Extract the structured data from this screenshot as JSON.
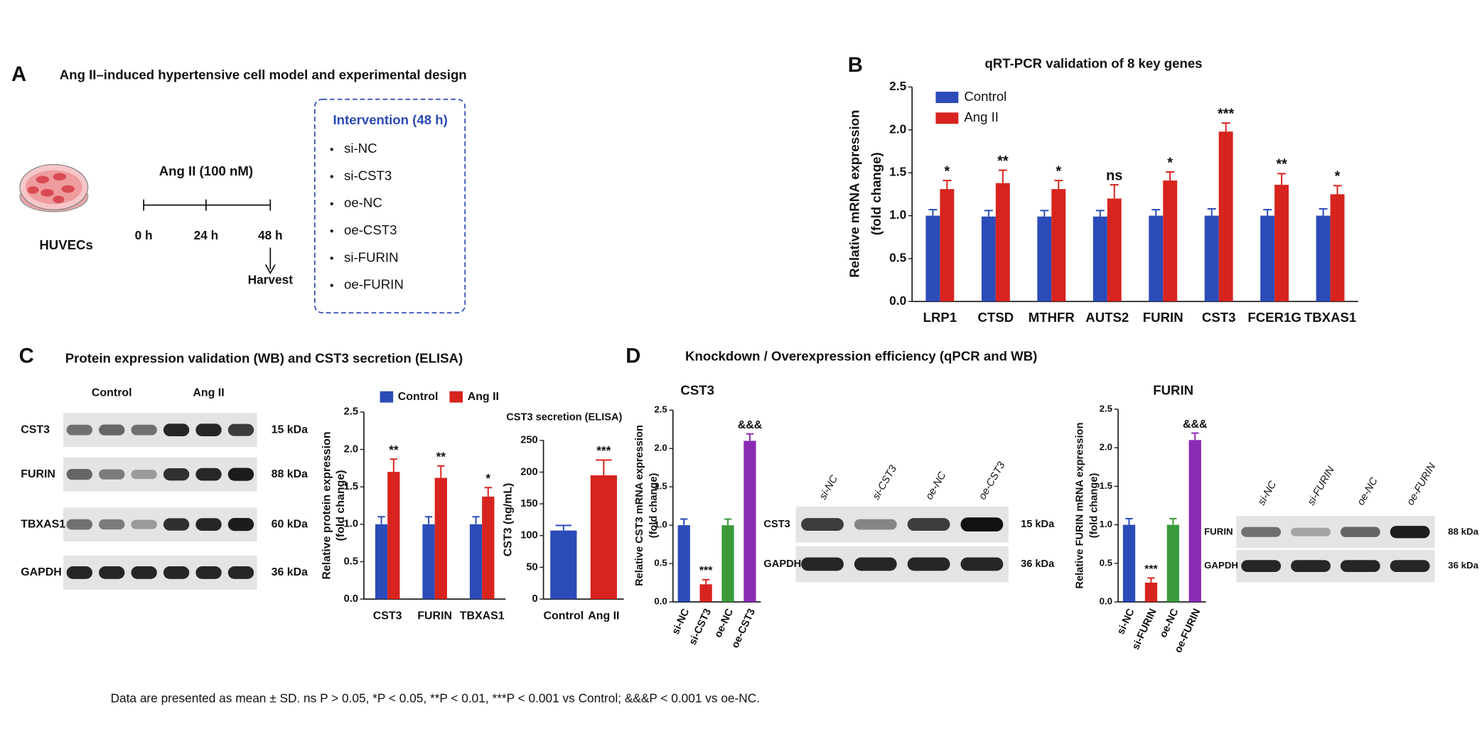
{
  "panels": [
    {
      "label": "A",
      "title": "Ang II–induced hypertensive cell model and experimental design"
    },
    {
      "label": "B"
    },
    {
      "label": "C",
      "title": "Protein expression validation (WB) and CST3 secretion (ELISA)"
    },
    {
      "label": "D",
      "title": "Knockdown / Overexpression efficiency (qPCR and WB)"
    }
  ],
  "design": {
    "cells": "HUVECs",
    "treatment": "Ang II (100 nM)",
    "timepoints": [
      "0 h",
      "24 h",
      "48 h"
    ],
    "harvest": "Harvest",
    "intervention_title": "Intervention (48 h)",
    "interventions": [
      "si-NC",
      "si-CST3",
      "oe-NC",
      "oe-CST3",
      "si-FURIN",
      "oe-FURIN"
    ]
  },
  "chart_data": [
    {
      "type": "bar",
      "title": "qRT-PCR validation of 8 key genes",
      "y_label": [
        "Relative mRNA expression",
        "(fold change)"
      ],
      "categories": [
        "LRP1",
        "CTSD",
        "MTHFR",
        "AUTS2",
        "FURIN",
        "CST3",
        "FCER1G",
        "TBXAS1"
      ],
      "series": [
        {
          "name": "Control",
          "color": "#2b4bb8",
          "values": [
            1,
            0.99,
            0.99,
            0.99,
            1,
            1,
            1,
            1
          ],
          "errors": [
            0.07,
            0.07,
            0.07,
            0.07,
            0.07,
            0.08,
            0.07,
            0.08
          ]
        },
        {
          "name": "Ang II",
          "color": "#d7241f",
          "values": [
            1.31,
            1.38,
            1.31,
            1.2,
            1.41,
            1.98,
            1.36,
            1.25
          ],
          "errors": [
            0.1,
            0.15,
            0.1,
            0.16,
            0.1,
            0.1,
            0.13,
            0.1
          ]
        }
      ],
      "annotations": [
        "*",
        "**",
        "*",
        "ns",
        "*",
        "***",
        "**",
        "*"
      ],
      "ylim": [
        0,
        2.5
      ],
      "yticks": [
        {
          "value": 0,
          "label": "0.0"
        },
        0.5,
        {
          "value": 1,
          "label": "1.0"
        },
        1.5,
        {
          "value": 2,
          "label": "2.0"
        },
        2.5
      ],
      "legend": "upper left"
    },
    {
      "type": "bar",
      "y_label": [
        "Relative protein expression",
        "(fold change)"
      ],
      "categories": [
        "CST3",
        "FURIN",
        "TBXAS1"
      ],
      "series": [
        {
          "name": "Control",
          "color": "#2b4bb8",
          "values": [
            1,
            1,
            1
          ],
          "errors": [
            0.1,
            0.1,
            0.1
          ]
        },
        {
          "name": "Ang II",
          "color": "#d7241f",
          "values": [
            1.7,
            1.62,
            1.37
          ],
          "errors": [
            0.17,
            0.16,
            0.12
          ]
        }
      ],
      "annotations": [
        "**",
        "**",
        "*"
      ],
      "ylim": [
        0,
        2.5
      ],
      "yticks": [
        {
          "value": 0,
          "label": "0.0"
        },
        0.5,
        {
          "value": 1,
          "label": "1.0"
        },
        1.5,
        {
          "value": 2,
          "label": "2.0"
        },
        2.5
      ],
      "legend": "top"
    },
    {
      "type": "bar",
      "title": "CST3 secretion (ELISA)",
      "y_label": [
        "CST3 (ng/mL)"
      ],
      "categories": [
        "Control",
        "Ang II"
      ],
      "values": [
        108,
        195
      ],
      "errors": [
        8,
        24
      ],
      "colors": [
        "#2b4bb8",
        "#d7241f"
      ],
      "annotations": [
        null,
        "***"
      ],
      "ylim": [
        0,
        250
      ],
      "yticks": [
        0,
        50,
        100,
        150,
        200,
        250
      ]
    },
    {
      "type": "bar",
      "title": "CST3",
      "y_label": [
        "Relative CST3 mRNA expression",
        "(fold change)"
      ],
      "categories": [
        "si-NC",
        "si-CST3",
        "oe-NC",
        "oe-CST3"
      ],
      "values": [
        1,
        0.23,
        1,
        2.1
      ],
      "errors": [
        0.08,
        0.06,
        0.08,
        0.09
      ],
      "colors": [
        "#2b4bb8",
        "#d7241f",
        "#3a9a3a",
        "#8a2bb5"
      ],
      "annotations": [
        null,
        "***",
        null,
        "&&&"
      ],
      "ylim": [
        0,
        2.5
      ],
      "yticks": [
        {
          "value": 0,
          "label": "0.0"
        },
        0.5,
        {
          "value": 1,
          "label": "1.0"
        },
        1.5,
        {
          "value": 2,
          "label": "2.0"
        },
        2.5
      ]
    },
    {
      "type": "bar",
      "title": "FURIN",
      "y_label": [
        "Relative FURIN mRNA expression",
        "(fold change)"
      ],
      "categories": [
        "si-NC",
        "si-FURIN",
        "oe-NC",
        "oe-FURIN"
      ],
      "values": [
        1,
        0.25,
        1,
        2.1
      ],
      "errors": [
        0.08,
        0.06,
        0.08,
        0.09
      ],
      "colors": [
        "#2b4bb8",
        "#d7241f",
        "#3a9a3a",
        "#8a2bb5"
      ],
      "annotations": [
        null,
        "***",
        null,
        "&&&"
      ],
      "ylim": [
        0,
        2.5
      ],
      "yticks": [
        {
          "value": 0,
          "label": "0.0"
        },
        0.5,
        {
          "value": 1,
          "label": "1.0"
        },
        1.5,
        {
          "value": 2,
          "label": "2.0"
        },
        2.5
      ]
    }
  ],
  "blots": [
    {
      "groups": [
        "Control",
        "Ang II"
      ],
      "rows": [
        {
          "name": "CST3",
          "size": "15 kDa"
        },
        {
          "name": "FURIN",
          "size": "88 kDa"
        },
        {
          "name": "TBXAS1",
          "size": "60 kDa"
        },
        {
          "name": "GAPDH",
          "size": "36 kDa"
        }
      ]
    },
    {
      "lanes": [
        "si-NC",
        "si-CST3",
        "oe-NC",
        "oe-CST3"
      ],
      "rows": [
        {
          "name": "CST3",
          "size": "15 kDa"
        },
        {
          "name": "GAPDH",
          "size": "36 kDa"
        }
      ]
    },
    {
      "lanes": [
        "si-NC",
        "si-FURIN",
        "oe-NC",
        "oe-FURIN"
      ],
      "rows": [
        {
          "name": "FURIN",
          "size": "88 kDa"
        },
        {
          "name": "GAPDH",
          "size": "36 kDa"
        }
      ]
    }
  ],
  "footnote": "Data are presented as mean ± SD.  ns P > 0.05,  *P < 0.05,  **P < 0.01,  ***P < 0.001 vs Control;  &&&P < 0.001 vs oe-NC."
}
